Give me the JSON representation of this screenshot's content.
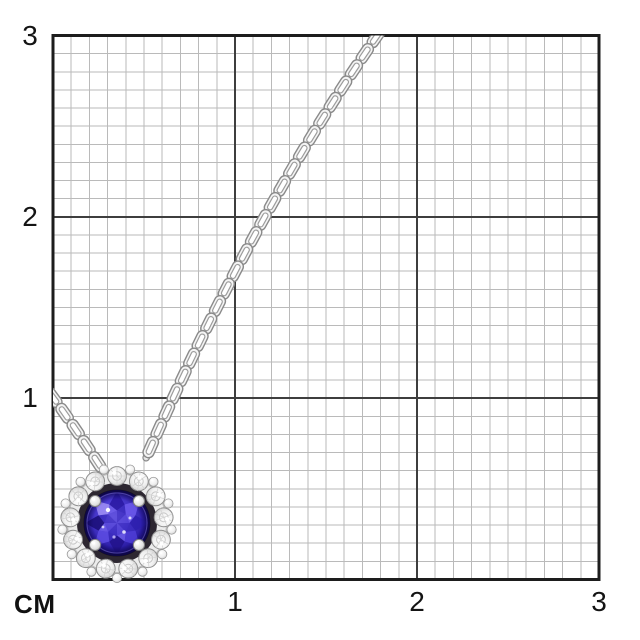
{
  "page": {
    "description": "Silver cable-chain necklace with a round violet-blue gemstone in a diamond halo pendant, photographed on a centimeter measurement grid"
  },
  "ruler": {
    "unit_label": "СМ",
    "x_tick_labels": [
      "1",
      "2",
      "3"
    ],
    "y_tick_labels": [
      "3",
      "2",
      "1"
    ],
    "range_cm": [
      0,
      3
    ],
    "minor_division_cm": 0.1
  },
  "photo": {
    "subject": "pendant-necklace",
    "chain_style": "cable-link",
    "gem_shape": "round",
    "setting": "four-prong with blackened bezel and diamond halo"
  },
  "measurements_from_grid": {
    "pendant_width_cm": 0.62,
    "pendant_height_cm": 0.62,
    "gem_diameter_cm": 0.35
  },
  "colors": {
    "background": "#ffffff",
    "grid_minor": "#bababa",
    "grid_major": "#3e3e3e",
    "grid_border": "#1d1d1d",
    "label_text": "#141414",
    "metal": "#f2f2f2",
    "gem": "#3a2bbc",
    "blackened_bezel": "#2d2731",
    "halo_stones": "#f4f4f4"
  }
}
